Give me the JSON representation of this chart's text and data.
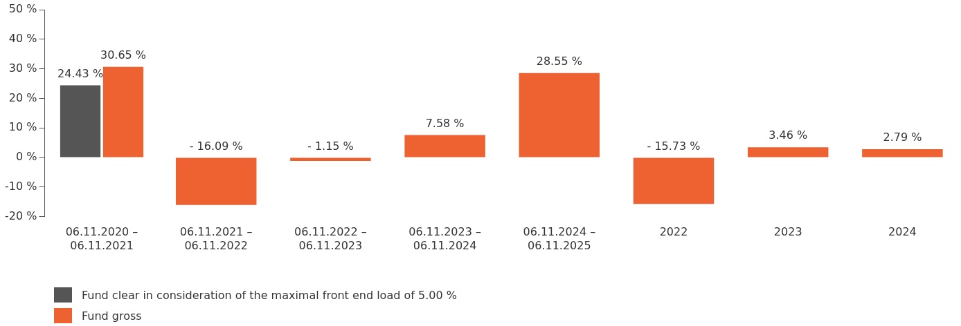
{
  "chart_data": {
    "type": "bar",
    "categories": [
      "06.11.2020 –\n06.11.2021",
      "06.11.2021 –\n06.11.2022",
      "06.11.2022 –\n06.11.2023",
      "06.11.2023 –\n06.11.2024",
      "06.11.2024 –\n06.11.2025",
      "2022",
      "2023",
      "2024"
    ],
    "series": [
      {
        "name": "Fund clear in consideration of the maximal front end load of 5.00 %",
        "color": "#555555",
        "values": [
          24.43,
          null,
          null,
          null,
          null,
          null,
          null,
          null
        ],
        "value_labels": [
          "24.43 %",
          null,
          null,
          null,
          null,
          null,
          null,
          null
        ]
      },
      {
        "name": "Fund gross",
        "color": "#ee6130",
        "values": [
          30.65,
          -16.09,
          -1.15,
          7.58,
          28.55,
          -15.73,
          3.46,
          2.79
        ],
        "value_labels": [
          "30.65 %",
          "- 16.09 %",
          "- 1.15 %",
          "7.58 %",
          "28.55 %",
          "- 15.73 %",
          "3.46 %",
          "2.79 %"
        ]
      }
    ],
    "ylim": [
      -20,
      50
    ],
    "yticks": [
      {
        "value": -20,
        "label": "-20 %"
      },
      {
        "value": -10,
        "label": "-10 %"
      },
      {
        "value": 0,
        "label": "0 %"
      },
      {
        "value": 10,
        "label": "10 %"
      },
      {
        "value": 20,
        "label": "20 %"
      },
      {
        "value": 30,
        "label": "30 %"
      },
      {
        "value": 40,
        "label": "40 %"
      },
      {
        "value": 50,
        "label": "50 %"
      }
    ],
    "grid": false,
    "legend": "bottom left"
  }
}
